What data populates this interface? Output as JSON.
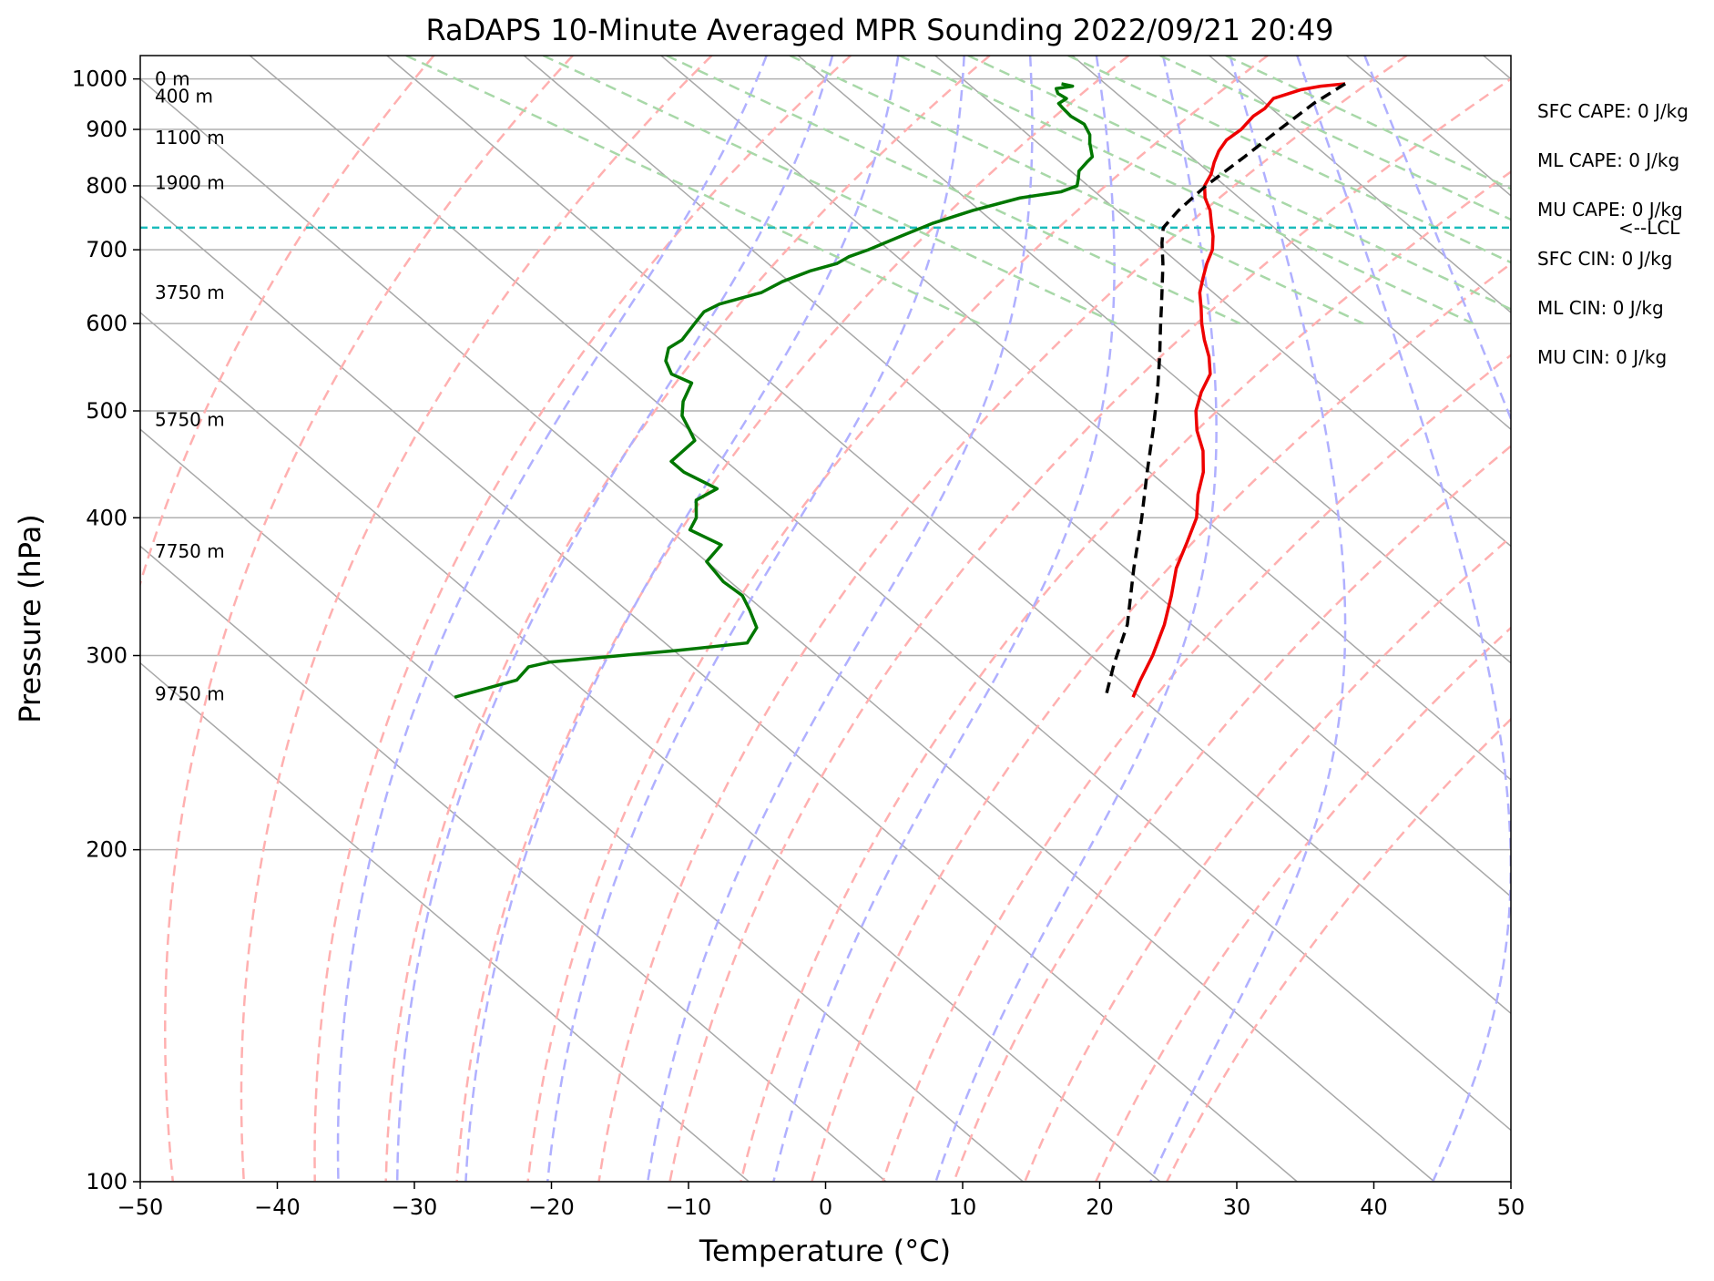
{
  "chart_data": {
    "type": "line",
    "title": "RaDAPS 10-Minute Averaged MPR Sounding 2022/09/21 20:49",
    "xlabel": "Temperature (°C)",
    "ylabel": "Pressure (hPa)",
    "xlim": [
      -50,
      50
    ],
    "ylim": [
      1050,
      100
    ],
    "y_scale": "log",
    "grid": true,
    "x_ticks": [
      -50,
      -40,
      -30,
      -20,
      -10,
      0,
      10,
      20,
      30,
      40,
      50
    ],
    "x_tick_labels": [
      "−50",
      "−40",
      "−30",
      "−20",
      "−10",
      "0",
      "10",
      "20",
      "30",
      "40",
      "50"
    ],
    "y_ticks": [
      100,
      200,
      300,
      400,
      500,
      600,
      700,
      800,
      900,
      1000
    ],
    "y_tick_labels": [
      "100",
      "200",
      "300",
      "400",
      "500",
      "600",
      "700",
      "800",
      "900",
      "1000"
    ],
    "skew_reference_T_at_1000": [
      -100,
      -90,
      -80,
      -70,
      -60,
      -50,
      -40,
      -30,
      -20,
      -10,
      0,
      10,
      20,
      30,
      40,
      50
    ],
    "dry_adiabats_theta_C": [
      -30,
      -20,
      -10,
      0,
      10,
      20,
      30,
      40,
      50,
      60,
      70,
      80,
      90,
      100,
      110,
      120
    ],
    "moist_adiabats_T_at_1000": [
      -5,
      0,
      5,
      10,
      15,
      20,
      25,
      30,
      35,
      40
    ],
    "mixing_ratio_lines_T_at_1000": [
      -26.5,
      -16.5,
      -7.5,
      1.5,
      9.5,
      14.5,
      21.8,
      28.5,
      33.3
    ],
    "height_labels": [
      {
        "pressure": 277,
        "text": "9750 m"
      },
      {
        "pressure": 373,
        "text": "7750 m"
      },
      {
        "pressure": 491,
        "text": "5750 m"
      },
      {
        "pressure": 640,
        "text": "3750 m"
      },
      {
        "pressure": 805,
        "text": "1900 m"
      },
      {
        "pressure": 885,
        "text": "1100 m"
      },
      {
        "pressure": 965,
        "text": "400 m"
      },
      {
        "pressure": 1000,
        "text": "0 m"
      }
    ],
    "stats": [
      "SFC CAPE: 0 J/kg",
      "ML CAPE: 0 J/kg",
      "MU CAPE: 0 J/kg",
      "SFC CIN: 0 J/kg",
      "ML CIN: 0 J/kg",
      "MU CIN: 0 J/kg"
    ],
    "lcl": {
      "pressure": 733,
      "label": "<--LCL"
    },
    "colors": {
      "temperature": "#ee0000",
      "dewpoint": "#007700",
      "parcel": "#000000",
      "lcl": "#1abcbc",
      "dry_adiabat": "#ffb0b0",
      "moist_adiabat": "#b0b0ff",
      "mixing_ratio": "#a8d8a8",
      "isotherm": "#a8a8a8",
      "grid": "#b0b0b0"
    },
    "series": [
      {
        "key": "temperature",
        "points": [
          [
            990,
            37.5
          ],
          [
            985,
            35.5
          ],
          [
            978,
            33.8
          ],
          [
            960,
            31.0
          ],
          [
            940,
            29.5
          ],
          [
            925,
            28.0
          ],
          [
            900,
            26.0
          ],
          [
            880,
            24.0
          ],
          [
            860,
            22.5
          ],
          [
            840,
            21.2
          ],
          [
            820,
            20.0
          ],
          [
            800,
            18.5
          ],
          [
            780,
            17.5
          ],
          [
            760,
            16.8
          ],
          [
            740,
            15.8
          ],
          [
            720,
            14.8
          ],
          [
            700,
            13.6
          ],
          [
            680,
            12.0
          ],
          [
            660,
            10.5
          ],
          [
            640,
            9.0
          ],
          [
            620,
            7.8
          ],
          [
            600,
            6.5
          ],
          [
            580,
            5.3
          ],
          [
            560,
            4.2
          ],
          [
            540,
            2.8
          ],
          [
            520,
            0.6
          ],
          [
            500,
            -1.4
          ],
          [
            480,
            -3.0
          ],
          [
            460,
            -4.3
          ],
          [
            440,
            -6.1
          ],
          [
            420,
            -8.4
          ],
          [
            400,
            -10.5
          ],
          [
            380,
            -13.3
          ],
          [
            360,
            -16.3
          ],
          [
            340,
            -19.0
          ],
          [
            320,
            -22.0
          ],
          [
            300,
            -25.5
          ],
          [
            285,
            -28.5
          ],
          [
            275,
            -30.5
          ]
        ]
      },
      {
        "key": "dewpoint",
        "points": [
          [
            990,
            16.8
          ],
          [
            985,
            17.4
          ],
          [
            980,
            16.0
          ],
          [
            970,
            15.7
          ],
          [
            960,
            15.9
          ],
          [
            950,
            14.9
          ],
          [
            940,
            14.8
          ],
          [
            925,
            14.7
          ],
          [
            910,
            15.0
          ],
          [
            890,
            14.5
          ],
          [
            875,
            13.8
          ],
          [
            860,
            13.2
          ],
          [
            850,
            12.8
          ],
          [
            840,
            11.9
          ],
          [
            825,
            10.6
          ],
          [
            812,
            9.9
          ],
          [
            800,
            9.2
          ],
          [
            790,
            7.5
          ],
          [
            780,
            4.0
          ],
          [
            760,
            -0.5
          ],
          [
            740,
            -4.5
          ],
          [
            720,
            -8.0
          ],
          [
            700,
            -11.5
          ],
          [
            690,
            -13.5
          ],
          [
            680,
            -15.0
          ],
          [
            670,
            -17.5
          ],
          [
            655,
            -20.5
          ],
          [
            640,
            -23.0
          ],
          [
            625,
            -27.0
          ],
          [
            615,
            -28.8
          ],
          [
            600,
            -30.5
          ],
          [
            580,
            -32.8
          ],
          [
            570,
            -34.5
          ],
          [
            555,
            -35.8
          ],
          [
            540,
            -36.5
          ],
          [
            530,
            -35.8
          ],
          [
            510,
            -38.0
          ],
          [
            495,
            -39.3
          ],
          [
            480,
            -40.0
          ],
          [
            470,
            -40.5
          ],
          [
            450,
            -44.0
          ],
          [
            440,
            -44.0
          ],
          [
            425,
            -43.0
          ],
          [
            415,
            -45.5
          ],
          [
            400,
            -47.0
          ],
          [
            390,
            -48.5
          ],
          [
            378,
            -47.5
          ],
          [
            365,
            -50.0
          ],
          [
            350,
            -50.5
          ],
          [
            340,
            -50.3
          ],
          [
            330,
            -51.0
          ],
          [
            318,
            -52.0
          ],
          [
            308,
            -54.0
          ],
          [
            303,
            -60.0
          ],
          [
            296,
            -70.0
          ],
          [
            293,
            -72.0
          ],
          [
            285,
            -74.0
          ],
          [
            275,
            -80.0
          ]
        ]
      },
      {
        "key": "parcel",
        "points": [
          [
            990,
            37.5
          ],
          [
            950,
            33.5
          ],
          [
            900,
            28.8
          ],
          [
            850,
            23.9
          ],
          [
            800,
            18.6
          ],
          [
            760,
            14.5
          ],
          [
            733,
            11.9
          ],
          [
            710,
            10.5
          ],
          [
            680,
            8.8
          ],
          [
            650,
            6.9
          ],
          [
            620,
            4.9
          ],
          [
            600,
            3.5
          ],
          [
            560,
            0.6
          ],
          [
            520,
            -2.6
          ],
          [
            480,
            -6.2
          ],
          [
            440,
            -10.2
          ],
          [
            400,
            -14.5
          ],
          [
            360,
            -19.4
          ],
          [
            320,
            -24.7
          ],
          [
            295,
            -29.0
          ],
          [
            275,
            -32.5
          ]
        ]
      }
    ]
  }
}
